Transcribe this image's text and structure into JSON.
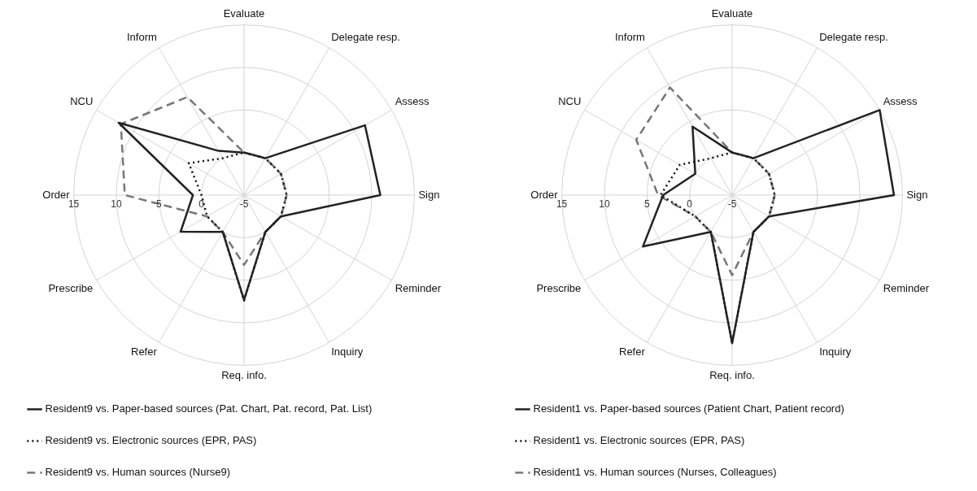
{
  "chart_data": [
    {
      "type": "radar",
      "categories": [
        "Evaluate",
        "Delegate resp.",
        "Assess",
        "Sign",
        "Reminder",
        "Inquiry",
        "Req. info.",
        "Refer",
        "Prescribe",
        "Order",
        "NCU",
        "Inform"
      ],
      "ylim": [
        -5,
        15
      ],
      "yticks": [
        -5,
        0,
        5,
        10,
        15
      ],
      "grid": true,
      "legend": "bottom",
      "marker": "none",
      "series": [
        {
          "name": "Resident9 vs. Paper-based sources (Pat. Chart, Pat. record, Pat. List)",
          "color": "#222222",
          "line_style": "solid",
          "values": [
            0,
            0,
            11.4,
            11,
            0,
            0,
            7.3,
            0,
            3.6,
            1,
            12,
            1
          ]
        },
        {
          "name": "Resident9 vs. Electronic sources (EPR, PAS)",
          "color": "#111111",
          "line_style": "dotted",
          "values": [
            0,
            0,
            0,
            0,
            0,
            0,
            7.4,
            0,
            0,
            0,
            2.5,
            0
          ]
        },
        {
          "name": "Resident9 vs. Human sources (Nurse9)",
          "color": "#777777",
          "line_style": "dashed",
          "values": [
            0,
            0,
            0,
            0,
            0,
            0,
            3.2,
            0,
            0,
            9,
            11.7,
            8.3
          ]
        }
      ]
    },
    {
      "type": "radar",
      "categories": [
        "Evaluate",
        "Delegate resp.",
        "Assess",
        "Sign",
        "Reminder",
        "Inquiry",
        "Req. info.",
        "Refer",
        "Prescribe",
        "Order",
        "NCU",
        "Inform"
      ],
      "ylim": [
        -5,
        15
      ],
      "yticks": [
        -5,
        0,
        5,
        10,
        15
      ],
      "grid": true,
      "legend": "bottom",
      "marker": "none",
      "series": [
        {
          "name": "Resident1 vs. Paper-based sources (Patient Chart, Patient record)",
          "color": "#222222",
          "line_style": "solid",
          "values": [
            0,
            0,
            15,
            14,
            0,
            0,
            12.4,
            0,
            7.1,
            3.1,
            0,
            4.3
          ]
        },
        {
          "name": "Resident1 vs. Electronic sources (EPR, PAS)",
          "color": "#111111",
          "line_style": "dotted",
          "values": [
            0,
            0,
            0,
            0,
            0,
            0,
            12.4,
            0,
            0,
            3.4,
            2.1,
            0
          ]
        },
        {
          "name": "Resident1 vs. Human sources (Nurses, Colleagues)",
          "color": "#777777",
          "line_style": "dashed",
          "values": [
            0,
            0,
            0,
            0,
            0,
            0,
            4.4,
            0,
            0,
            3.7,
            8,
            9.6
          ]
        }
      ]
    }
  ]
}
